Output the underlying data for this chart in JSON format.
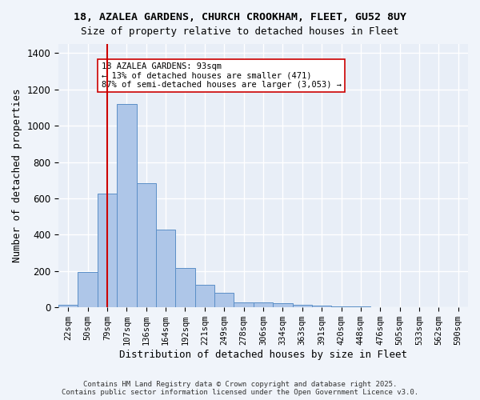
{
  "title1": "18, AZALEA GARDENS, CHURCH CROOKHAM, FLEET, GU52 8UY",
  "title2": "Size of property relative to detached houses in Fleet",
  "xlabel": "Distribution of detached houses by size in Fleet",
  "ylabel": "Number of detached properties",
  "bin_labels": [
    "22sqm",
    "50sqm",
    "79sqm",
    "107sqm",
    "136sqm",
    "164sqm",
    "192sqm",
    "221sqm",
    "249sqm",
    "278sqm",
    "306sqm",
    "334sqm",
    "363sqm",
    "391sqm",
    "420sqm",
    "448sqm",
    "476sqm",
    "505sqm",
    "533sqm",
    "562sqm",
    "590sqm"
  ],
  "bar_heights": [
    15,
    193,
    627,
    1120,
    685,
    427,
    217,
    125,
    80,
    28,
    27,
    22,
    13,
    10,
    5,
    5,
    3,
    1,
    2,
    1,
    1
  ],
  "bar_color": "#aec6e8",
  "bar_edge_color": "#5b8fc7",
  "vline_x": 2,
  "vline_color": "#cc0000",
  "annotation_text": "18 AZALEA GARDENS: 93sqm\n← 13% of detached houses are smaller (471)\n87% of semi-detached houses are larger (3,053) →",
  "annotation_box_color": "#ffffff",
  "annotation_box_edge": "#cc0000",
  "ylim": [
    0,
    1450
  ],
  "yticks": [
    0,
    200,
    400,
    600,
    800,
    1000,
    1200,
    1400
  ],
  "background_color": "#e8eef7",
  "grid_color": "#ffffff",
  "footer_text": "Contains HM Land Registry data © Crown copyright and database right 2025.\nContains public sector information licensed under the Open Government Licence v3.0."
}
